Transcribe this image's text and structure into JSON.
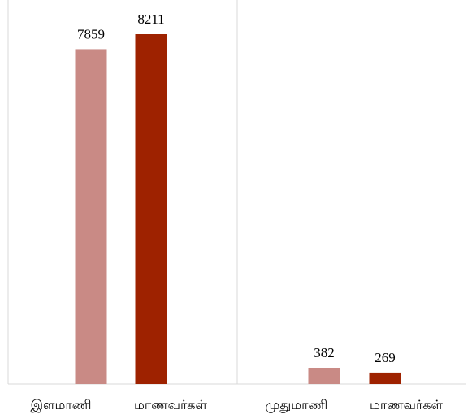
{
  "chart_data": {
    "type": "bar",
    "title": "",
    "xlabel": "",
    "ylabel": "",
    "categories": [
      "இளமாணி",
      "மாணவர்கள்",
      "முதுமாணி",
      "மாணவர்கள்"
    ],
    "groups": [
      {
        "label": "இளமாணி",
        "value": 7859,
        "color": "#c98a85"
      },
      {
        "label": "மாணவர்கள்",
        "value": 8211,
        "color": "#9e2200"
      },
      {
        "label": "முதுமாணி",
        "value": 382,
        "color": "#c98a85"
      },
      {
        "label": "மாணவர்கள்",
        "value": 269,
        "color": "#9e2200"
      }
    ],
    "values": [
      7859,
      8211,
      382,
      269
    ],
    "ylim": [
      0,
      8211
    ],
    "grid": false,
    "legend": "none"
  }
}
